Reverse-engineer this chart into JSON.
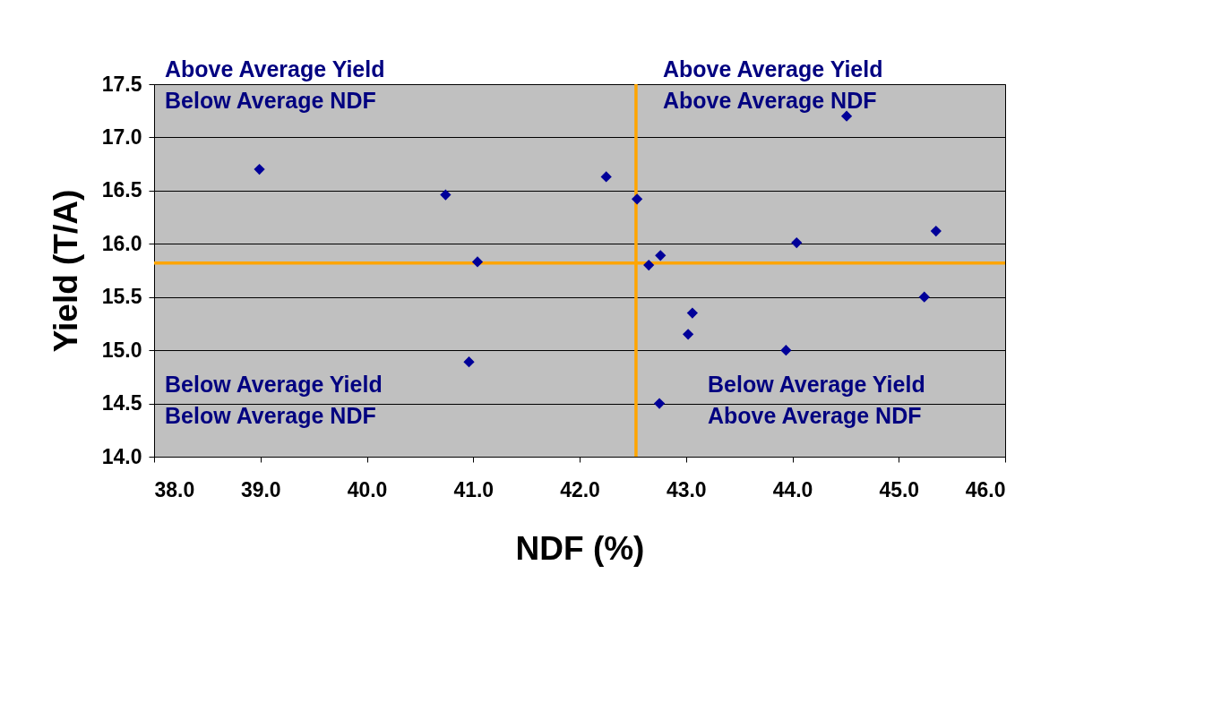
{
  "chart_data": {
    "type": "scatter",
    "xlabel": "NDF (%)",
    "ylabel": "Yield (T/A)",
    "x": [
      38.99,
      40.74,
      41.04,
      40.96,
      42.25,
      42.54,
      42.65,
      42.76,
      43.06,
      43.02,
      42.75,
      43.94,
      44.04,
      44.51,
      45.35,
      45.24
    ],
    "series": [
      {
        "color": "#000099",
        "values": [
          16.7,
          16.46,
          15.83,
          14.89,
          16.63,
          16.42,
          15.8,
          15.89,
          15.35,
          15.15,
          14.5,
          15.0,
          16.01,
          17.2,
          16.12,
          15.5
        ]
      }
    ],
    "xlim": [
      38,
      46
    ],
    "ylim": [
      14,
      17.5
    ],
    "xticks": [
      {
        "value": 38,
        "label": "38.0"
      },
      {
        "value": 39,
        "label": "39.0"
      },
      {
        "value": 40,
        "label": "40.0"
      },
      {
        "value": 41,
        "label": "41.0"
      },
      {
        "value": 42,
        "label": "42.0"
      },
      {
        "value": 43,
        "label": "43.0"
      },
      {
        "value": 44,
        "label": "44.0"
      },
      {
        "value": 45,
        "label": "45.0"
      },
      {
        "value": 46,
        "label": "46.0"
      }
    ],
    "yticks": [
      {
        "value": 14,
        "label": "14.0"
      },
      {
        "value": 14.5,
        "label": "14.5"
      },
      {
        "value": 15,
        "label": "15.0"
      },
      {
        "value": 15.5,
        "label": "15.5"
      },
      {
        "value": 16,
        "label": "16.0"
      },
      {
        "value": 16.5,
        "label": "16.5"
      },
      {
        "value": 17,
        "label": "17.0"
      },
      {
        "value": 17.5,
        "label": "17.5"
      }
    ],
    "ref_lines": [
      {
        "axis": "x",
        "value": 42.53,
        "color": "#ffa500"
      },
      {
        "axis": "y",
        "value": 15.82,
        "color": "#ffa500"
      }
    ],
    "annotations": [
      "Above Average Yield\nBelow Average NDF",
      "Above Average Yield\nAbove Average NDF",
      "Below Average Yield\nBelow Average NDF",
      "Below Average Yield\nAbove Average NDF"
    ],
    "grid": "y",
    "marker": "diamond"
  }
}
